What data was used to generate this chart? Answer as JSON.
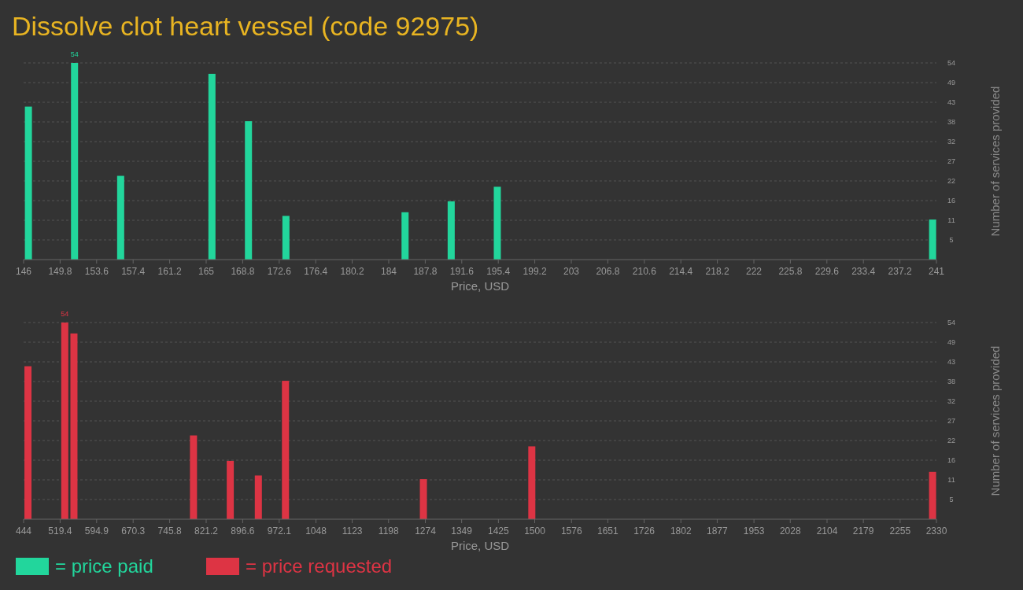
{
  "chart_data": [
    {
      "type": "bar",
      "title": "Dissolve clot heart vessel (code 92975)",
      "xlabel": "Price, USD",
      "ylabel": "Number of services provided",
      "legend": "bottom left",
      "grid": "y",
      "x": [
        146.5,
        151.3,
        156.1,
        165.6,
        169.4,
        173.3,
        185.7,
        190.5,
        195.3,
        240.6
      ],
      "series": [
        {
          "name": "= price paid",
          "color": "#22d69c",
          "values": [
            42,
            54,
            23,
            51,
            38,
            12,
            13,
            16,
            20,
            11
          ],
          "value_labels": [
            null,
            "54",
            null,
            null,
            null,
            null,
            null,
            null,
            null,
            null
          ]
        }
      ],
      "xlim": [
        146,
        241
      ],
      "xticks": [
        146,
        149.8,
        153.6,
        157.4,
        161.2,
        165,
        168.8,
        172.6,
        176.4,
        180.2,
        184,
        187.8,
        191.6,
        195.4,
        199.2,
        203,
        206.8,
        210.6,
        214.4,
        218.2,
        222,
        225.8,
        229.6,
        233.4,
        237.2,
        241
      ],
      "ylim": [
        0,
        54
      ],
      "yticks": [
        {
          "value": 5.4,
          "label": "5"
        },
        {
          "value": 10.8,
          "label": "11"
        },
        {
          "value": 16.2,
          "label": "16"
        },
        {
          "value": 21.6,
          "label": "22"
        },
        {
          "value": 27,
          "label": "27"
        },
        {
          "value": 32.4,
          "label": "32"
        },
        {
          "value": 37.8,
          "label": "38"
        },
        {
          "value": 43.2,
          "label": "43"
        },
        {
          "value": 48.6,
          "label": "49"
        },
        54
      ]
    },
    {
      "type": "bar",
      "xlabel": "Price, USD",
      "ylabel": "Number of services provided",
      "legend": "bottom left",
      "grid": "y",
      "x": [
        453,
        529,
        548,
        795,
        871,
        929,
        985,
        1270,
        1494,
        2322
      ],
      "series": [
        {
          "name": "= price requested",
          "color": "#dd3444",
          "values": [
            42,
            54,
            51,
            23,
            16,
            12,
            38,
            11,
            20,
            13
          ],
          "value_labels": [
            null,
            "54",
            null,
            null,
            null,
            null,
            null,
            null,
            null,
            null
          ]
        }
      ],
      "xlim": [
        444,
        2330
      ],
      "xticks": [
        444,
        519.4,
        594.9,
        670.3,
        745.8,
        821.2,
        896.6,
        972.1,
        1048,
        1123,
        1198,
        1274,
        1349,
        1425,
        1500,
        1576,
        1651,
        1726,
        1802,
        1877,
        1953,
        2028,
        2104,
        2179,
        2255,
        2330
      ],
      "ylim": [
        0,
        54
      ],
      "yticks": [
        {
          "value": 5.4,
          "label": "5"
        },
        {
          "value": 10.8,
          "label": "11"
        },
        {
          "value": 16.2,
          "label": "16"
        },
        {
          "value": 21.6,
          "label": "22"
        },
        {
          "value": 27,
          "label": "27"
        },
        {
          "value": 32.4,
          "label": "32"
        },
        {
          "value": 37.8,
          "label": "38"
        },
        {
          "value": 43.2,
          "label": "43"
        },
        {
          "value": 48.6,
          "label": "49"
        },
        54
      ]
    }
  ]
}
